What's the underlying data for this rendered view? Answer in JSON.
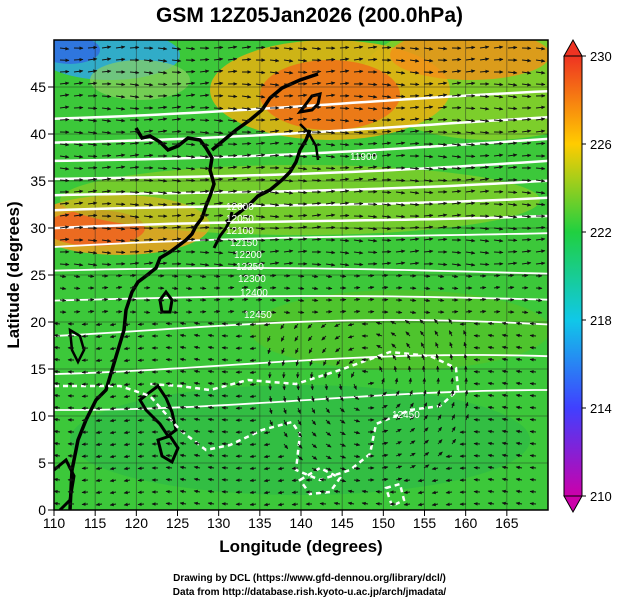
{
  "title": "GSM 12Z05Jan2026 (200.0hPa)",
  "xlabel": "Longitude (degrees)",
  "ylabel": "Latitude  (degrees)",
  "credits": [
    "Drawing by DCL (https://www.gfd-dennou.org/library/dcl/)",
    "Data from http://database.rish.kyoto-u.ac.jp/arch/jmadata/"
  ],
  "chart_data": {
    "type": "heatmap",
    "title": "GSM 12Z05Jan2026 (200.0hPa)",
    "xlabel": "Longitude (degrees)",
    "ylabel": "Latitude  (degrees)",
    "xlim": [
      110,
      170
    ],
    "ylim": [
      0,
      50
    ],
    "x_ticks": [
      110,
      115,
      120,
      125,
      130,
      135,
      140,
      145,
      150,
      155,
      160,
      165
    ],
    "y_ticks": [
      0,
      5,
      10,
      15,
      20,
      25,
      30,
      35,
      40,
      45
    ],
    "grid": true,
    "colorbar": {
      "min": 210,
      "max": 230,
      "ticks": [
        210,
        214,
        218,
        222,
        226,
        230
      ],
      "colors": [
        "#cc00aa",
        "#4040ff",
        "#10c8e8",
        "#20d040",
        "#ffcc00",
        "#ee3322"
      ]
    },
    "contour_labels": [
      "11900",
      "11950",
      "12000",
      "12050",
      "12100",
      "12150",
      "12200",
      "12250",
      "12300",
      "12350",
      "12400",
      "12450"
    ],
    "overlays": [
      "temperature shading",
      "geopotential height contours",
      "wind streamlines",
      "coastlines"
    ]
  }
}
